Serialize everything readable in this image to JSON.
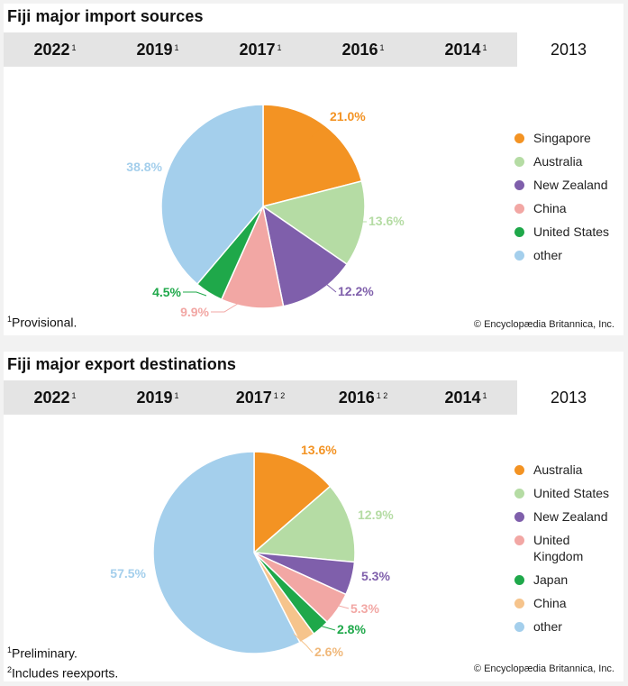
{
  "imports": {
    "title": "Fiji major import sources",
    "tabs": [
      {
        "year": "2022",
        "sup": "1"
      },
      {
        "year": "2019",
        "sup": "1"
      },
      {
        "year": "2017",
        "sup": "1"
      },
      {
        "year": "2016",
        "sup": "1"
      },
      {
        "year": "2014",
        "sup": "1"
      },
      {
        "year": "2013",
        "sup": ""
      }
    ],
    "active_tab": "2013",
    "footnotes": [
      {
        "sup": "1",
        "text": "Provisional."
      }
    ],
    "credit": "© Encyclopædia Britannica, Inc."
  },
  "exports": {
    "title": "Fiji major export destinations",
    "tabs": [
      {
        "year": "2022",
        "sup": "1"
      },
      {
        "year": "2019",
        "sup": "1"
      },
      {
        "year": "2017",
        "sup": "1 2"
      },
      {
        "year": "2016",
        "sup": "1 2"
      },
      {
        "year": "2014",
        "sup": "1"
      },
      {
        "year": "2013",
        "sup": ""
      }
    ],
    "active_tab": "2013",
    "footnotes": [
      {
        "sup": "1",
        "text": "Preliminary."
      },
      {
        "sup": "2",
        "text": "Includes reexports."
      }
    ],
    "credit": "© Encyclopædia Britannica, Inc."
  },
  "chart_data": [
    {
      "type": "pie",
      "title": "Fiji major import sources",
      "year": "2013",
      "slices": [
        {
          "label": "Singapore",
          "value": 21.0,
          "display": "21.0%",
          "color": "#f39323"
        },
        {
          "label": "Australia",
          "value": 13.6,
          "display": "13.6%",
          "color": "#b5dca4"
        },
        {
          "label": "New Zealand",
          "value": 12.2,
          "display": "12.2%",
          "color": "#7f5fab"
        },
        {
          "label": "China",
          "value": 9.9,
          "display": "9.9%",
          "color": "#f2a7a4"
        },
        {
          "label": "United States",
          "value": 4.5,
          "display": "4.5%",
          "color": "#1fa84a"
        },
        {
          "label": "other",
          "value": 38.8,
          "display": "38.8%",
          "color": "#a4cfec"
        }
      ]
    },
    {
      "type": "pie",
      "title": "Fiji major export destinations",
      "year": "2013",
      "slices": [
        {
          "label": "Australia",
          "value": 13.6,
          "display": "13.6%",
          "color": "#f39323"
        },
        {
          "label": "United States",
          "value": 12.9,
          "display": "12.9%",
          "color": "#b5dca4"
        },
        {
          "label": "New Zealand",
          "value": 5.3,
          "display": "5.3%",
          "color": "#7f5fab"
        },
        {
          "label": "United Kingdom",
          "value": 5.3,
          "display": "5.3%",
          "color": "#f2a7a4"
        },
        {
          "label": "Japan",
          "value": 2.8,
          "display": "2.8%",
          "color": "#1fa84a"
        },
        {
          "label": "China",
          "value": 2.6,
          "display": "2.6%",
          "color": "#f6c48c"
        },
        {
          "label": "other",
          "value": 57.5,
          "display": "57.5%",
          "color": "#a4cfec"
        }
      ]
    }
  ]
}
